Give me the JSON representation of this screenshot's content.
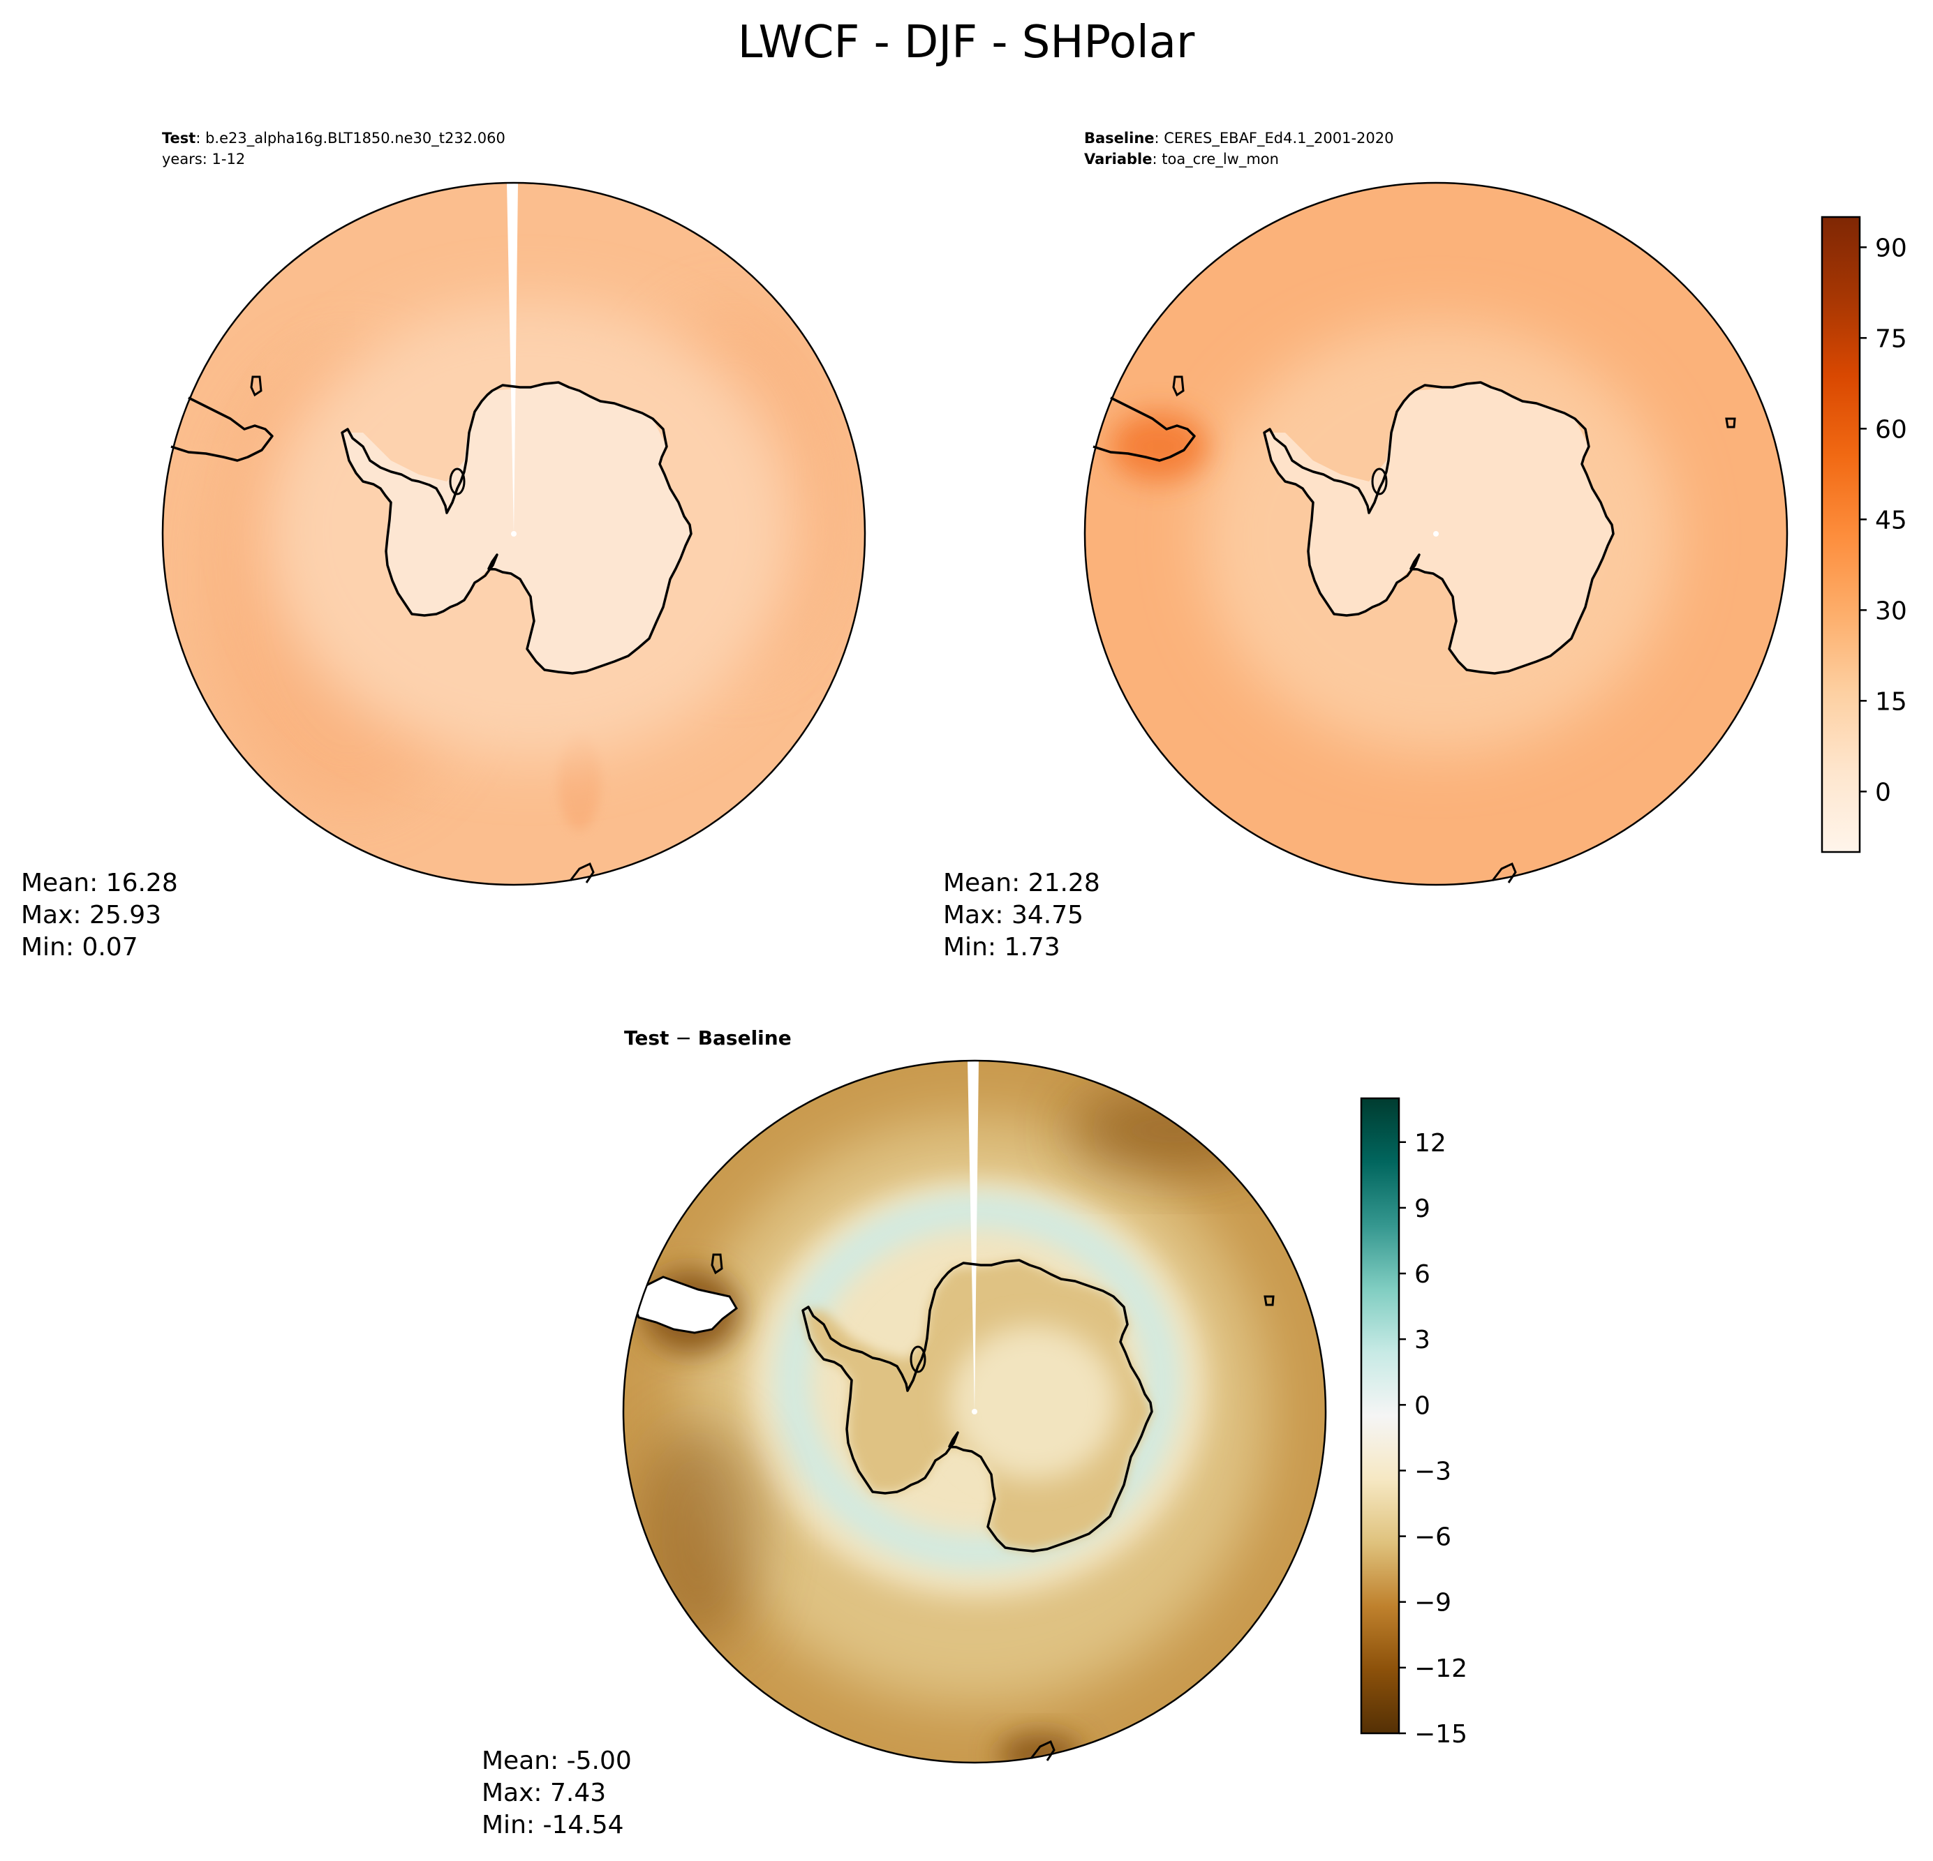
{
  "title": "LWCF - DJF - SHPolar",
  "panels": {
    "test": {
      "label_key": "Test",
      "label_value": ": b.e23_alpha16g.BLT1850.ne30_t232.060",
      "sub_line": "years: 1-12",
      "stats": {
        "mean": "Mean: 16.28",
        "max": "Max: 25.93",
        "min": "Min:  0.07"
      }
    },
    "baseline": {
      "label_key": "Baseline",
      "label_value": ": CERES_EBAF_Ed4.1_2001-2020",
      "var_key": "Variable",
      "var_value": ": toa_cre_lw_mon",
      "stats": {
        "mean": "Mean: 21.28",
        "max": "Max: 34.75",
        "min": "Min:  1.73"
      }
    },
    "diff": {
      "label_a": "Test",
      "label_sep": " − ",
      "label_b": "Baseline",
      "stats": {
        "mean": "Mean: -5.00",
        "max": "Max:  7.43",
        "min": "Min: -14.54"
      }
    }
  },
  "colorbar_top": {
    "min": -10,
    "max": 95,
    "ticks": [
      "0",
      "15",
      "30",
      "45",
      "60",
      "75",
      "90"
    ],
    "tick_values": [
      0,
      15,
      30,
      45,
      60,
      75,
      90
    ],
    "colormap": "Oranges",
    "stops": [
      "#fff5eb",
      "#fee6ce",
      "#fdd0a2",
      "#fdae6b",
      "#fd8d3c",
      "#f16913",
      "#d94801",
      "#a63603",
      "#7f2704"
    ]
  },
  "colorbar_diff": {
    "min": -15,
    "max": 14,
    "ticks": [
      "−15",
      "−12",
      "−9",
      "−6",
      "−3",
      "0",
      "3",
      "6",
      "9",
      "12"
    ],
    "tick_values": [
      -15,
      -12,
      -9,
      -6,
      -3,
      0,
      3,
      6,
      9,
      12
    ],
    "colormap": "BrBG",
    "stops": [
      "#543005",
      "#8c510a",
      "#bf812d",
      "#dfc27d",
      "#f6e8c3",
      "#f5f5f5",
      "#c7eae5",
      "#80cdc1",
      "#35978f",
      "#01665e",
      "#003c30"
    ]
  },
  "colors": {
    "test_ocean": "#fbbe8e",
    "test_ocean_dark": "#f9b07c",
    "test_mid": "#fdd2ae",
    "test_land": "#fde6d2",
    "base_ocean": "#fbb27a",
    "base_mid": "#fcca9f",
    "base_land": "#fee2c9",
    "base_hot": "#f47a30",
    "diff_outer": "#c99a4e",
    "diff_mid": "#dfc283",
    "diff_pale": "#f2e4bf",
    "diff_teal": "#cdebe6",
    "diff_brown": "#8c5a1e"
  }
}
